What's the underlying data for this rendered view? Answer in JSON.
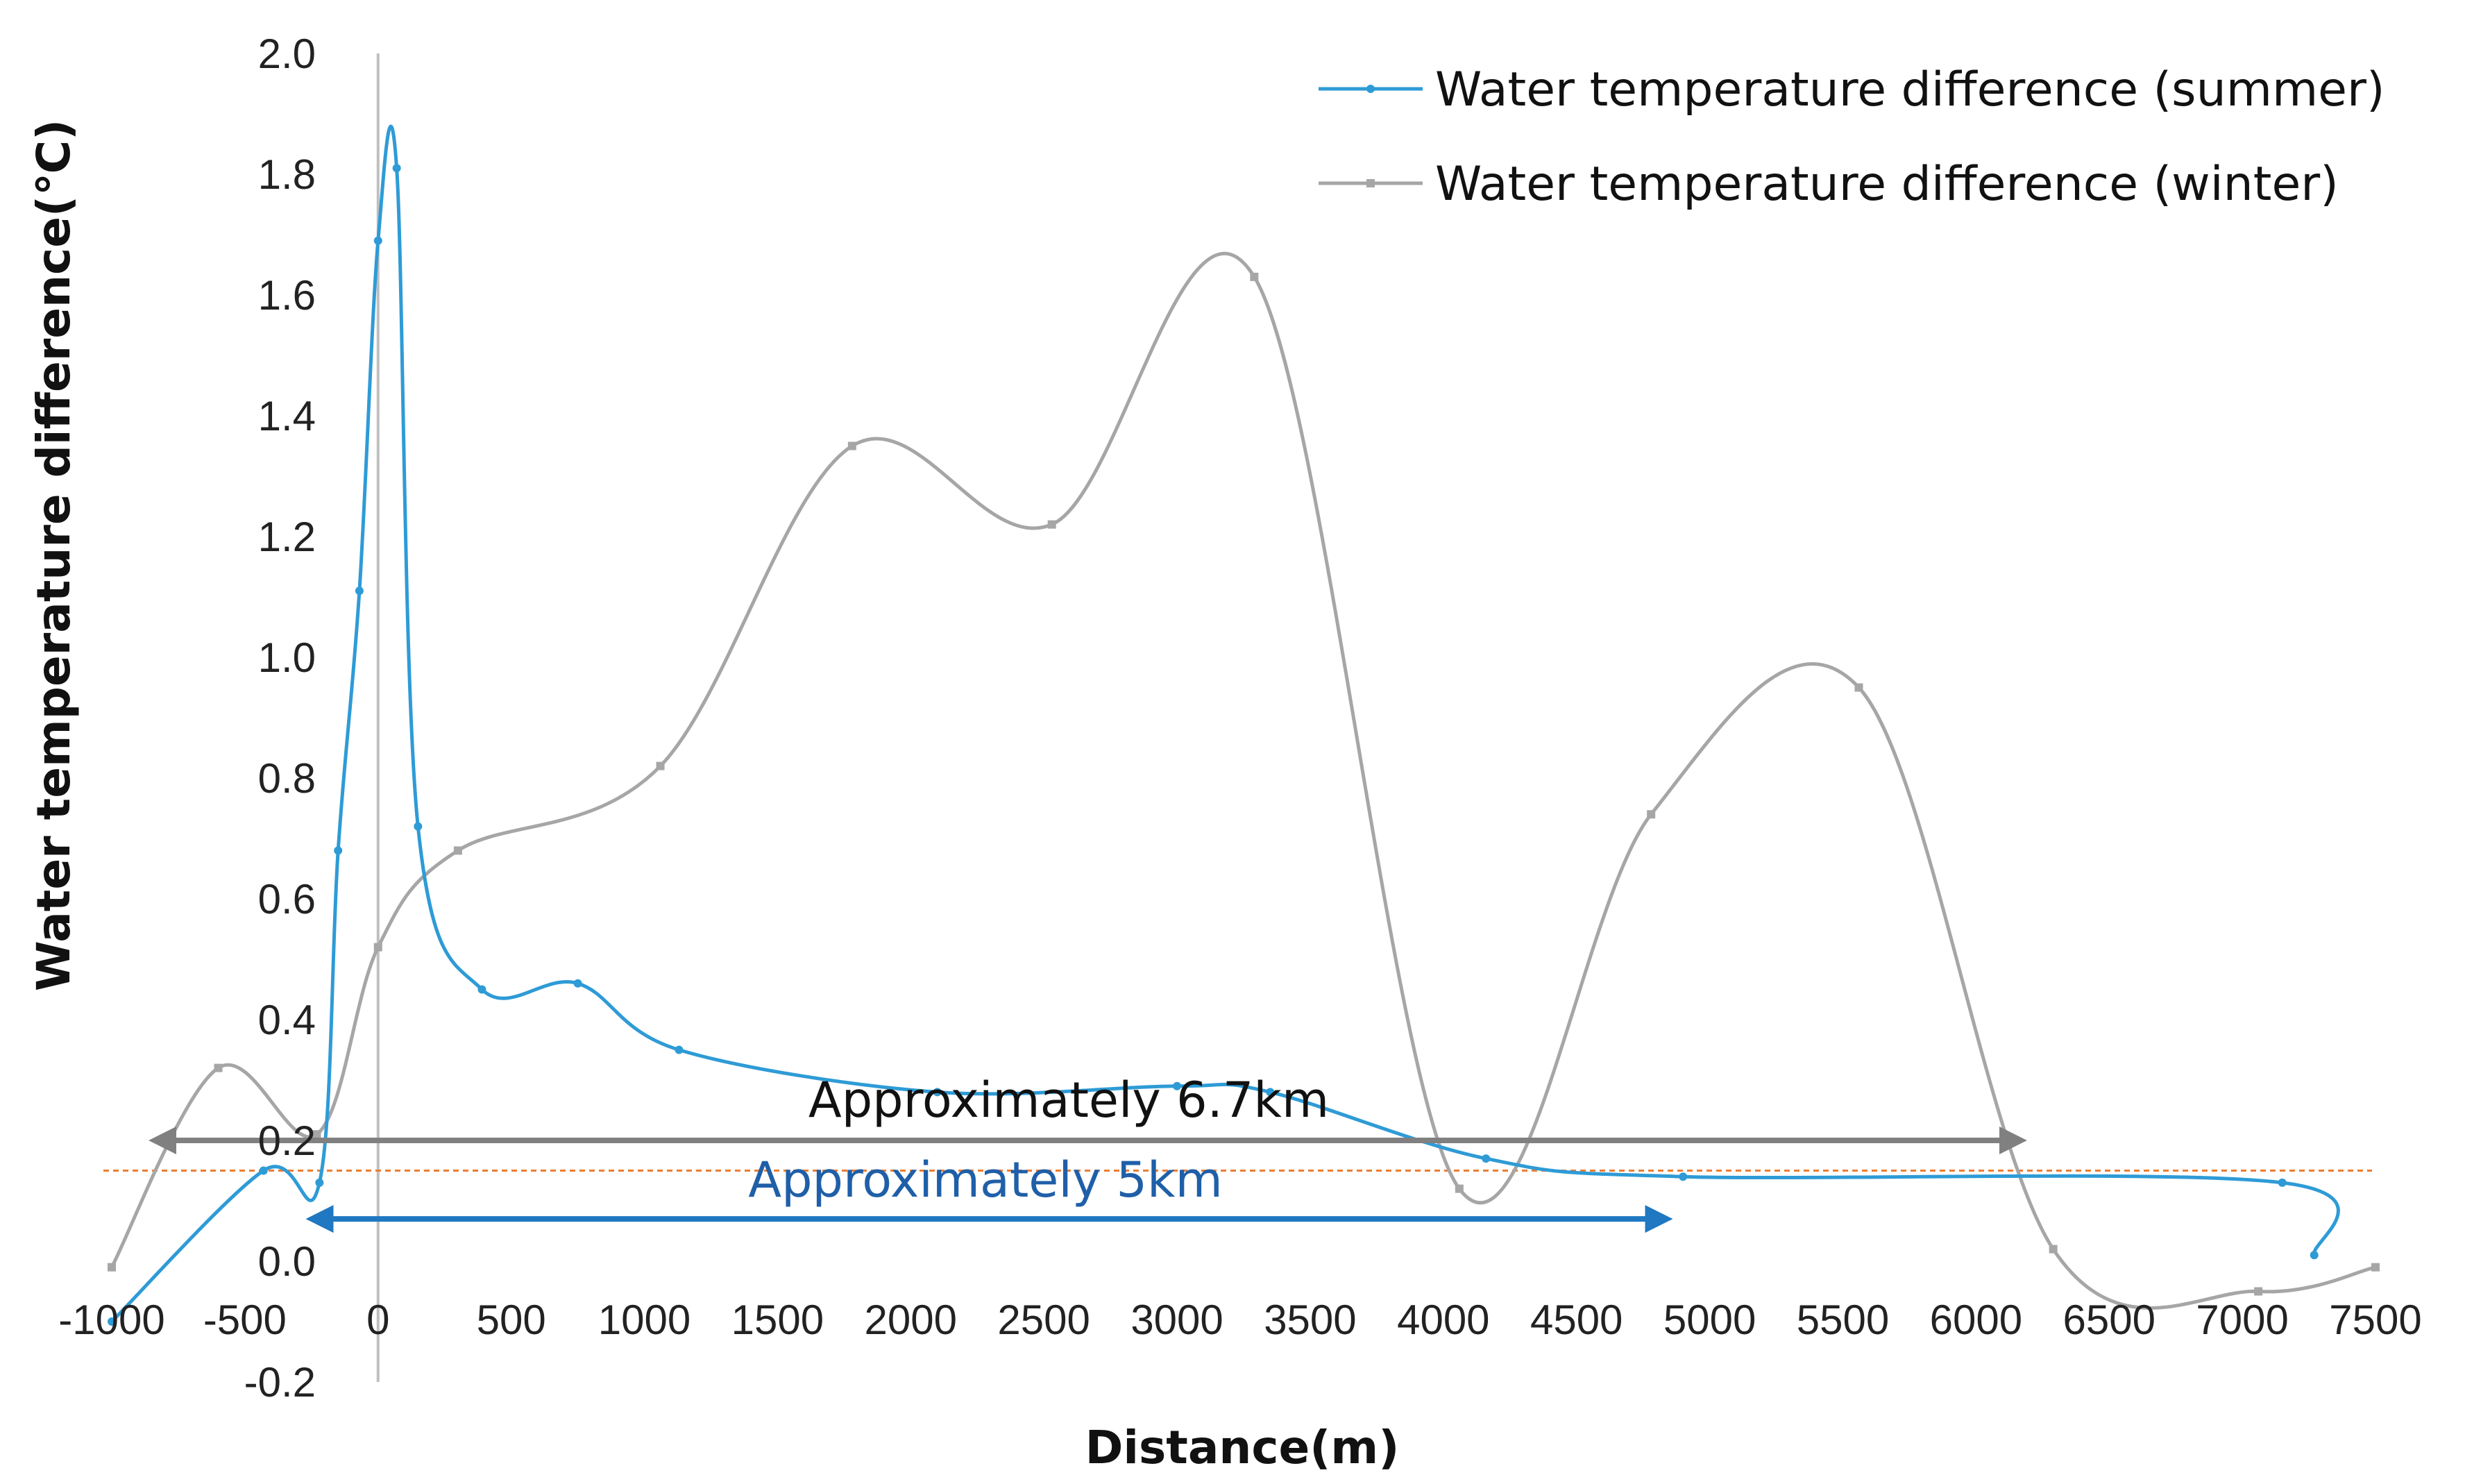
{
  "chart_data": {
    "type": "line",
    "title": "",
    "xlabel": "Distance(m)",
    "ylabel": "Water temperature difference(℃)",
    "xlim": [
      -1000,
      7500
    ],
    "ylim": [
      -0.2,
      2.0
    ],
    "x_ticks": [
      "-1000",
      "-500",
      "0",
      "500",
      "1000",
      "1500",
      "2000",
      "2500",
      "3000",
      "3500",
      "4000",
      "4500",
      "5000",
      "5500",
      "6000",
      "6500",
      "7000",
      "7500"
    ],
    "y_ticks": [
      "2.0",
      "1.8",
      "1.6",
      "1.4",
      "1.2",
      "1.0",
      "0.8",
      "0.6",
      "0.4",
      "0.2",
      "0.0",
      "-0.2"
    ],
    "legend_position": "top-right",
    "series": [
      {
        "name": "Water temperature difference (summer)",
        "color": "#2E9BD6",
        "marker": "dot",
        "points": [
          {
            "x": -1000,
            "y": -0.1
          },
          {
            "x": -430,
            "y": 0.15
          },
          {
            "x": -220,
            "y": 0.13
          },
          {
            "x": -150,
            "y": 0.68
          },
          {
            "x": -70,
            "y": 1.11
          },
          {
            "x": 0,
            "y": 1.69
          },
          {
            "x": 70,
            "y": 1.81
          },
          {
            "x": 150,
            "y": 0.72
          },
          {
            "x": 390,
            "y": 0.45
          },
          {
            "x": 750,
            "y": 0.46
          },
          {
            "x": 1130,
            "y": 0.35
          },
          {
            "x": 2100,
            "y": 0.28
          },
          {
            "x": 3000,
            "y": 0.29
          },
          {
            "x": 3350,
            "y": 0.28
          },
          {
            "x": 4160,
            "y": 0.17
          },
          {
            "x": 4900,
            "y": 0.14
          },
          {
            "x": 7150,
            "y": 0.13
          },
          {
            "x": 7270,
            "y": 0.01
          }
        ]
      },
      {
        "name": "Water temperature difference (winter)",
        "color": "#A6A6A6",
        "marker": "square",
        "points": [
          {
            "x": -1000,
            "y": -0.01
          },
          {
            "x": -600,
            "y": 0.32
          },
          {
            "x": -230,
            "y": 0.21
          },
          {
            "x": 0,
            "y": 0.52
          },
          {
            "x": 300,
            "y": 0.68
          },
          {
            "x": 1060,
            "y": 0.82
          },
          {
            "x": 1780,
            "y": 1.35
          },
          {
            "x": 2530,
            "y": 1.22
          },
          {
            "x": 3290,
            "y": 1.63
          },
          {
            "x": 4060,
            "y": 0.12
          },
          {
            "x": 4780,
            "y": 0.74
          },
          {
            "x": 5560,
            "y": 0.95
          },
          {
            "x": 6290,
            "y": 0.02
          },
          {
            "x": 7060,
            "y": -0.05
          },
          {
            "x": 7500,
            "y": -0.01
          }
        ]
      }
    ],
    "reference_line": {
      "y": 0.15,
      "style": "dotted",
      "color": "#ED7D31"
    },
    "annotations": [
      {
        "text": "Approximately 6.7km",
        "x_start": -820,
        "x_end": 6150,
        "y": 0.2,
        "color": "#808080",
        "text_color": "#111111"
      },
      {
        "text": "Approximately 5km",
        "x_start": -230,
        "x_end": 4820,
        "y": 0.07,
        "color": "#1F78C1",
        "text_color": "#1F5FA8"
      }
    ]
  }
}
